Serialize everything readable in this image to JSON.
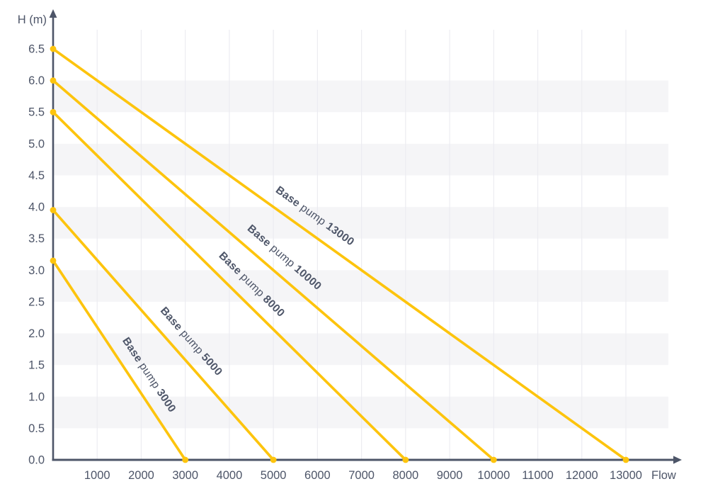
{
  "chart_data": {
    "type": "line",
    "title": "",
    "xlabel": "Flow",
    "ylabel": "H (m)",
    "x_ticks": [
      1000,
      2000,
      3000,
      4000,
      5000,
      6000,
      7000,
      8000,
      9000,
      10000,
      11000,
      12000,
      13000
    ],
    "y_ticks": [
      0.0,
      0.5,
      1.0,
      1.5,
      2.0,
      2.5,
      3.0,
      3.5,
      4.0,
      4.5,
      5.0,
      5.5,
      6.0,
      6.5
    ],
    "xlim": [
      0,
      14200
    ],
    "ylim": [
      0,
      7.0
    ],
    "grid": {
      "vertical_lines_at_x_ticks": true,
      "horizontal_stripe_bands_m": [
        [
          6.0,
          5.5
        ],
        [
          5.0,
          4.5
        ],
        [
          4.0,
          3.5
        ],
        [
          3.0,
          2.5
        ],
        [
          2.0,
          1.5
        ],
        [
          1.0,
          0.5
        ]
      ]
    },
    "legend_position": "labels-along-lines",
    "series": [
      {
        "label": "Base pump 13000",
        "max_head_m": 6.5,
        "max_flow": 13000,
        "points": [
          [
            0,
            6.5
          ],
          [
            13000,
            0
          ]
        ],
        "label_t": 0.44
      },
      {
        "label": "Base pump 10000",
        "max_head_m": 6.0,
        "max_flow": 10000,
        "points": [
          [
            0,
            6.0
          ],
          [
            10000,
            0
          ]
        ],
        "label_t": 0.5
      },
      {
        "label": "Base pump 8000",
        "max_head_m": 5.5,
        "max_flow": 8000,
        "points": [
          [
            0,
            5.5
          ],
          [
            8000,
            0
          ]
        ],
        "label_t": 0.53
      },
      {
        "label": "Base pump 5000",
        "max_head_m": 3.95,
        "max_flow": 5000,
        "points": [
          [
            0,
            3.95
          ],
          [
            5000,
            0
          ]
        ],
        "label_t": 0.57
      },
      {
        "label": "Base pump 3000",
        "max_head_m": 3.15,
        "max_flow": 3000,
        "points": [
          [
            0,
            3.15
          ],
          [
            3000,
            0
          ]
        ],
        "label_t": 0.62
      }
    ],
    "colors": {
      "line": "#FDC40D",
      "axis": "#4D5568",
      "text": "#4D5568",
      "band": "#F5F5F7",
      "gridline": "#ECECF1",
      "background": "#FFFFFF"
    }
  }
}
